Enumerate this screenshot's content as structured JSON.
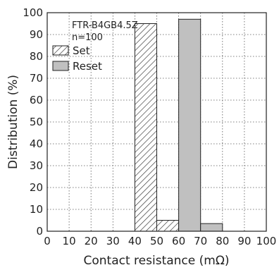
{
  "chart_data": {
    "type": "bar",
    "xlabel": "Contact resistance (mΩ)",
    "ylabel": "Distribution (%)",
    "xlim": [
      0,
      100
    ],
    "ylim": [
      0,
      100
    ],
    "x_ticks": [
      0,
      10,
      20,
      30,
      40,
      50,
      60,
      70,
      80,
      90,
      100
    ],
    "y_ticks": [
      0,
      10,
      20,
      30,
      40,
      50,
      60,
      70,
      80,
      90,
      100
    ],
    "grid": true,
    "legend_position": "top-left",
    "annotations": [
      "FTR-B4GB4.5Z",
      "n=100"
    ],
    "series": [
      {
        "name": "Set",
        "fill": "hatched",
        "bins": [
          {
            "from": 40,
            "to": 50,
            "value": 95
          },
          {
            "from": 50,
            "to": 60,
            "value": 5
          }
        ]
      },
      {
        "name": "Reset",
        "fill": "#c0c0c0",
        "bins": [
          {
            "from": 60,
            "to": 70,
            "value": 97
          },
          {
            "from": 70,
            "to": 80,
            "value": 3.5
          }
        ]
      }
    ]
  }
}
